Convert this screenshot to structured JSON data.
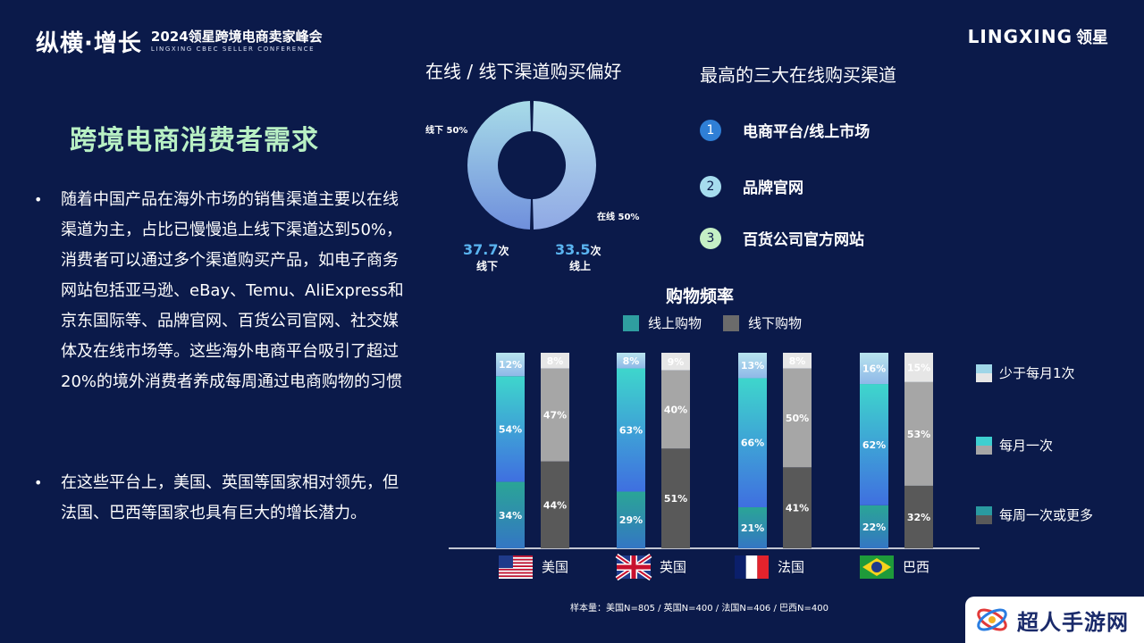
{
  "header": {
    "event_main": "纵横·增长",
    "event_name": "2024领星跨境电商卖家峰会",
    "event_en": "LINGXING CBEC SELLER CONFERENCE",
    "brand_en": "LINGXING",
    "brand_cn": "领星"
  },
  "left": {
    "title": "跨境电商消费者需求",
    "bullets": [
      "随着中国产品在海外市场的销售渠道主要以在线渠道为主，占比已慢慢追上线下渠道达到50%，消费者可以通过多个渠道购买产品，如电子商务网站包括亚马逊、eBay、Temu、AliExpress和京东国际等、品牌官网、百货公司官网、社交媒体及在线市场等。这些海外电商平台吸引了超过20%的境外消费者养成每周通过电商购物的习惯",
      "在这些平台上，美国、英国等国家相对领先，但法国、巴西等国家也具有巨大的增长潜力。"
    ]
  },
  "donut": {
    "title": "在线 / 线下渠道购买偏好",
    "offline_label": "线下 50%",
    "online_label": "在线 50%",
    "offline_value": 50,
    "online_value": 50,
    "offline_count": "37.7",
    "offline_count_unit": "次",
    "offline_count_label": "线下",
    "online_count": "33.5",
    "online_count_unit": "次",
    "online_count_label": "线上"
  },
  "top_channels": {
    "title": "最高的三大在线购买渠道",
    "items": [
      {
        "rank": "1",
        "label": "电商平台/线上市场",
        "color": "#2f7fd6"
      },
      {
        "rank": "2",
        "label": "品牌官网",
        "color": "#a6dcee"
      },
      {
        "rank": "3",
        "label": "百货公司官方网站",
        "color": "#c5f0c5"
      }
    ]
  },
  "chart_data": {
    "type": "bar",
    "stacked": true,
    "title": "购物频率",
    "legend": [
      "线上购物",
      "线下购物"
    ],
    "frequency_legend": [
      "少于每月1次",
      "每月一次",
      "每周一次或更多"
    ],
    "countries": [
      "美国",
      "英国",
      "法国",
      "巴西"
    ],
    "online": {
      "less_than_monthly": [
        12,
        8,
        13,
        16
      ],
      "monthly": [
        54,
        63,
        66,
        62
      ],
      "weekly_or_more": [
        34,
        29,
        21,
        22
      ]
    },
    "offline": {
      "less_than_monthly": [
        8,
        9,
        8,
        15
      ],
      "monthly": [
        47,
        40,
        50,
        53
      ],
      "weekly_or_more": [
        44,
        51,
        41,
        32
      ]
    },
    "ylim": [
      0,
      100
    ],
    "colors": {
      "online_top": "#9fd6e8",
      "online_mid_top": "#3ecfd0",
      "online_mid_bottom": "#3f7fe0",
      "online_bottom": "#2a9aa0",
      "offline_top": "#e6e6e6",
      "offline_mid": "#a6a6a6",
      "offline_bottom": "#595959"
    }
  },
  "footnote": "样本量：美国N=805 / 英国N=400 / 法国N=406 / 巴西N=400",
  "watermark": "超人手游网"
}
